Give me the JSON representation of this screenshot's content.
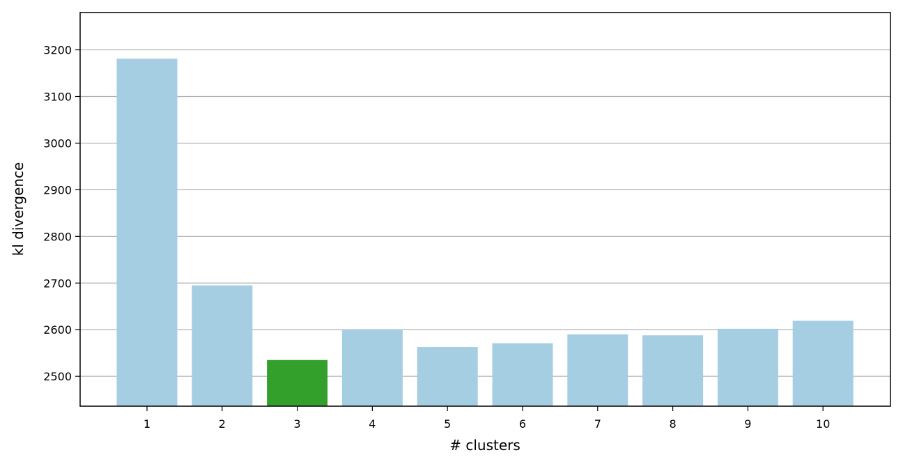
{
  "chart_data": {
    "type": "bar",
    "title": "",
    "xlabel": "# clusters",
    "ylabel": "kl divergence",
    "categories": [
      "1",
      "2",
      "3",
      "4",
      "5",
      "6",
      "7",
      "8",
      "9",
      "10"
    ],
    "values": [
      3181,
      2695,
      2535,
      2600,
      2563,
      2571,
      2590,
      2588,
      2602,
      2619
    ],
    "ylim": [
      2436,
      3280
    ],
    "yticks": [
      2500,
      2600,
      2700,
      2800,
      2900,
      3000,
      3100,
      3200
    ],
    "grid": "y",
    "highlight_index": 2,
    "colors": {
      "bar": "#a6cee3",
      "highlight": "#33a02c",
      "grid": "#b0b0b0",
      "axis": "#000000"
    }
  }
}
